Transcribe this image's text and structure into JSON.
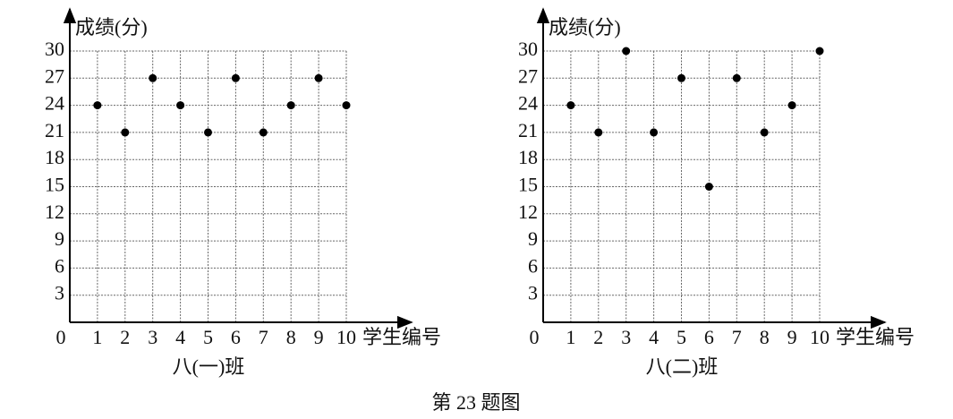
{
  "chart_data": [
    {
      "type": "scatter",
      "title": "八(一)班",
      "x_label": "学生编号",
      "y_label": "成绩(分)",
      "x": [
        1,
        2,
        3,
        4,
        5,
        6,
        7,
        8,
        9,
        10
      ],
      "values": [
        24,
        21,
        27,
        24,
        21,
        27,
        21,
        24,
        27,
        24
      ],
      "color": "#000000",
      "xlim": [
        0,
        10
      ],
      "ylim": [
        0,
        30
      ],
      "xticks": [
        0,
        1,
        2,
        3,
        4,
        5,
        6,
        7,
        8,
        9,
        10
      ],
      "yticks": [
        3,
        6,
        9,
        12,
        15,
        18,
        21,
        24,
        27,
        30
      ],
      "grid": true
    },
    {
      "type": "scatter",
      "title": "八(二)班",
      "x_label": "学生编号",
      "y_label": "成绩(分)",
      "x": [
        1,
        2,
        3,
        4,
        5,
        6,
        7,
        8,
        9,
        10
      ],
      "values": [
        24,
        21,
        30,
        21,
        27,
        15,
        27,
        21,
        24,
        30
      ],
      "color": "#000000",
      "xlim": [
        0,
        10
      ],
      "ylim": [
        0,
        30
      ],
      "xticks": [
        0,
        1,
        2,
        3,
        4,
        5,
        6,
        7,
        8,
        9,
        10
      ],
      "yticks": [
        3,
        6,
        9,
        12,
        15,
        18,
        21,
        24,
        27,
        30
      ],
      "grid": true
    }
  ],
  "caption": "第 23 题图"
}
